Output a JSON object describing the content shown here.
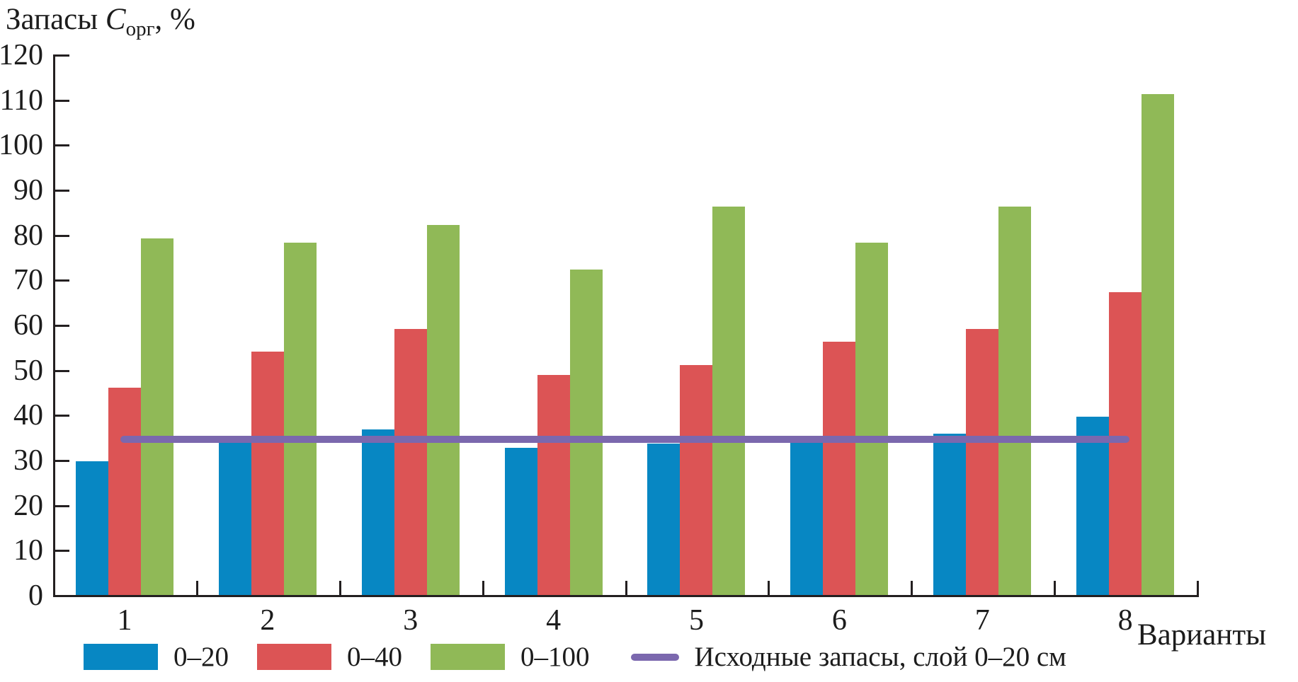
{
  "chart_data": {
    "type": "bar",
    "title": {
      "prefix": "Запасы ",
      "symbol": "C",
      "subscript": "орг",
      "suffix": ", %"
    },
    "x_axis_title": "Варианты",
    "categories": [
      "1",
      "2",
      "3",
      "4",
      "5",
      "6",
      "7",
      "8"
    ],
    "series": [
      {
        "name": "0–20",
        "color": "#0787c3",
        "values": [
          29.7,
          34.2,
          36.8,
          32.6,
          33.6,
          33.7,
          35.8,
          39.6
        ]
      },
      {
        "name": "0–40",
        "color": "#dc5455",
        "values": [
          46.0,
          54.0,
          59.0,
          48.8,
          51.0,
          56.2,
          59.0,
          67.3
        ]
      },
      {
        "name": "0–100",
        "color": "#90b957",
        "values": [
          79.1,
          78.2,
          82.2,
          72.3,
          86.3,
          78.2,
          86.3,
          111.2
        ]
      }
    ],
    "reference_line": {
      "label": "Исходные запасы, слой 0–20 см",
      "value": 34.6,
      "color": "#7b68ae"
    },
    "ylim": [
      0,
      120
    ],
    "ytick_step": 10,
    "grid": false,
    "legend_position": "bottom",
    "axis_color": "#231f20"
  }
}
